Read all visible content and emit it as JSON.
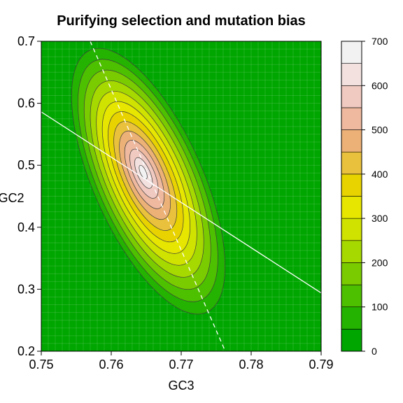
{
  "chart_data": {
    "type": "contour",
    "title": "Purifying selection and mutation bias",
    "xlabel": "GC3",
    "ylabel": "GC2",
    "xlim": [
      0.75,
      0.79
    ],
    "ylim": [
      0.2,
      0.7
    ],
    "x_ticks": [
      "0.75",
      "0.76",
      "0.77",
      "0.78",
      "0.79"
    ],
    "y_ticks": [
      "0.2",
      "0.3",
      "0.4",
      "0.5",
      "0.6",
      "0.7"
    ],
    "grid": true,
    "density_peak": {
      "x": 0.7645,
      "y": 0.49
    },
    "lines": [
      {
        "style": "solid",
        "color": "#ffffff",
        "points": [
          [
            0.75,
            0.586
          ],
          [
            0.79,
            0.294
          ]
        ]
      },
      {
        "style": "dashed",
        "color": "#ffffff",
        "points": [
          [
            0.757,
            0.7
          ],
          [
            0.7763,
            0.2
          ]
        ]
      }
    ],
    "colorbar": {
      "min": 0,
      "max": 700,
      "step": 50,
      "tick_labels": [
        "0",
        "100",
        "200",
        "300",
        "400",
        "500",
        "600",
        "700"
      ],
      "colors": [
        "#00a600",
        "#24b300",
        "#4dc000",
        "#7acc00",
        "#a6d900",
        "#cfe200",
        "#e6e600",
        "#e8d300",
        "#eac13c",
        "#ecb176",
        "#eeb99f",
        "#f0c9c0",
        "#f2e1df",
        "#f2f2f2"
      ]
    }
  }
}
